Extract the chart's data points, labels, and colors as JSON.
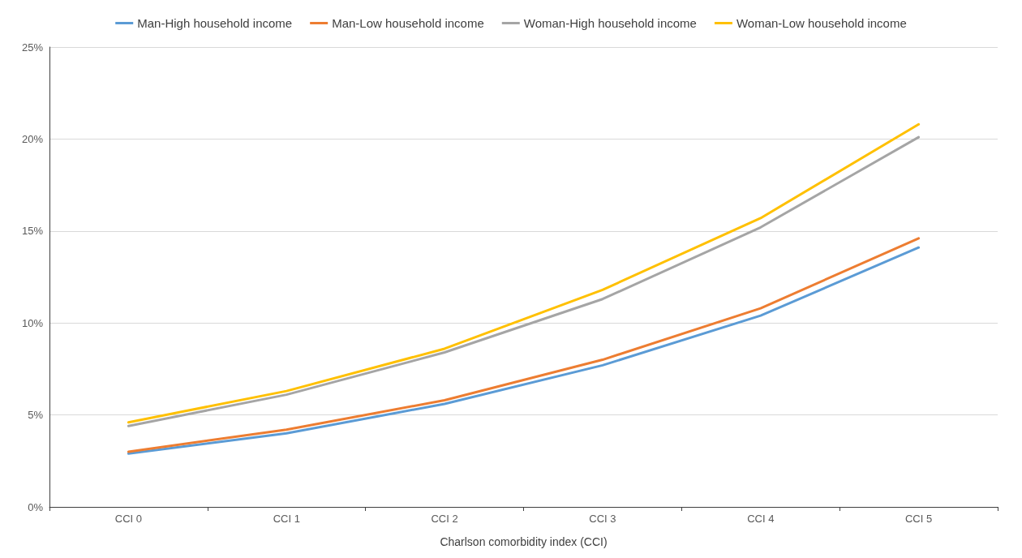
{
  "chart_data": {
    "type": "line",
    "xlabel": "Charlson comorbidity index (CCI)",
    "categories": [
      "CCI 0",
      "CCI 1",
      "CCI 2",
      "CCI 3",
      "CCI 4",
      "CCI 5"
    ],
    "series": [
      {
        "name": "Man-High household income",
        "color": "#5b9bd5",
        "values": [
          2.9,
          4.0,
          5.6,
          7.7,
          10.4,
          14.1
        ]
      },
      {
        "name": "Man-Low household income",
        "color": "#ed7d31",
        "values": [
          3.0,
          4.2,
          5.8,
          8.0,
          10.8,
          14.6
        ]
      },
      {
        "name": "Woman-High household income",
        "color": "#a5a5a5",
        "values": [
          4.4,
          6.1,
          8.4,
          11.3,
          15.2,
          20.1
        ]
      },
      {
        "name": "Woman-Low household income",
        "color": "#ffc000",
        "values": [
          4.6,
          6.3,
          8.6,
          11.8,
          15.7,
          20.8
        ]
      }
    ],
    "ylim": [
      0,
      25
    ],
    "yticks": [
      {
        "value": 0,
        "label": "0%"
      },
      {
        "value": 5,
        "label": "5%"
      },
      {
        "value": 10,
        "label": "10%"
      },
      {
        "value": 15,
        "label": "15%"
      },
      {
        "value": 20,
        "label": "20%"
      },
      {
        "value": 25,
        "label": "25%"
      }
    ],
    "grid": "y",
    "legend": "top",
    "marker": "none",
    "line_style": "solid"
  }
}
